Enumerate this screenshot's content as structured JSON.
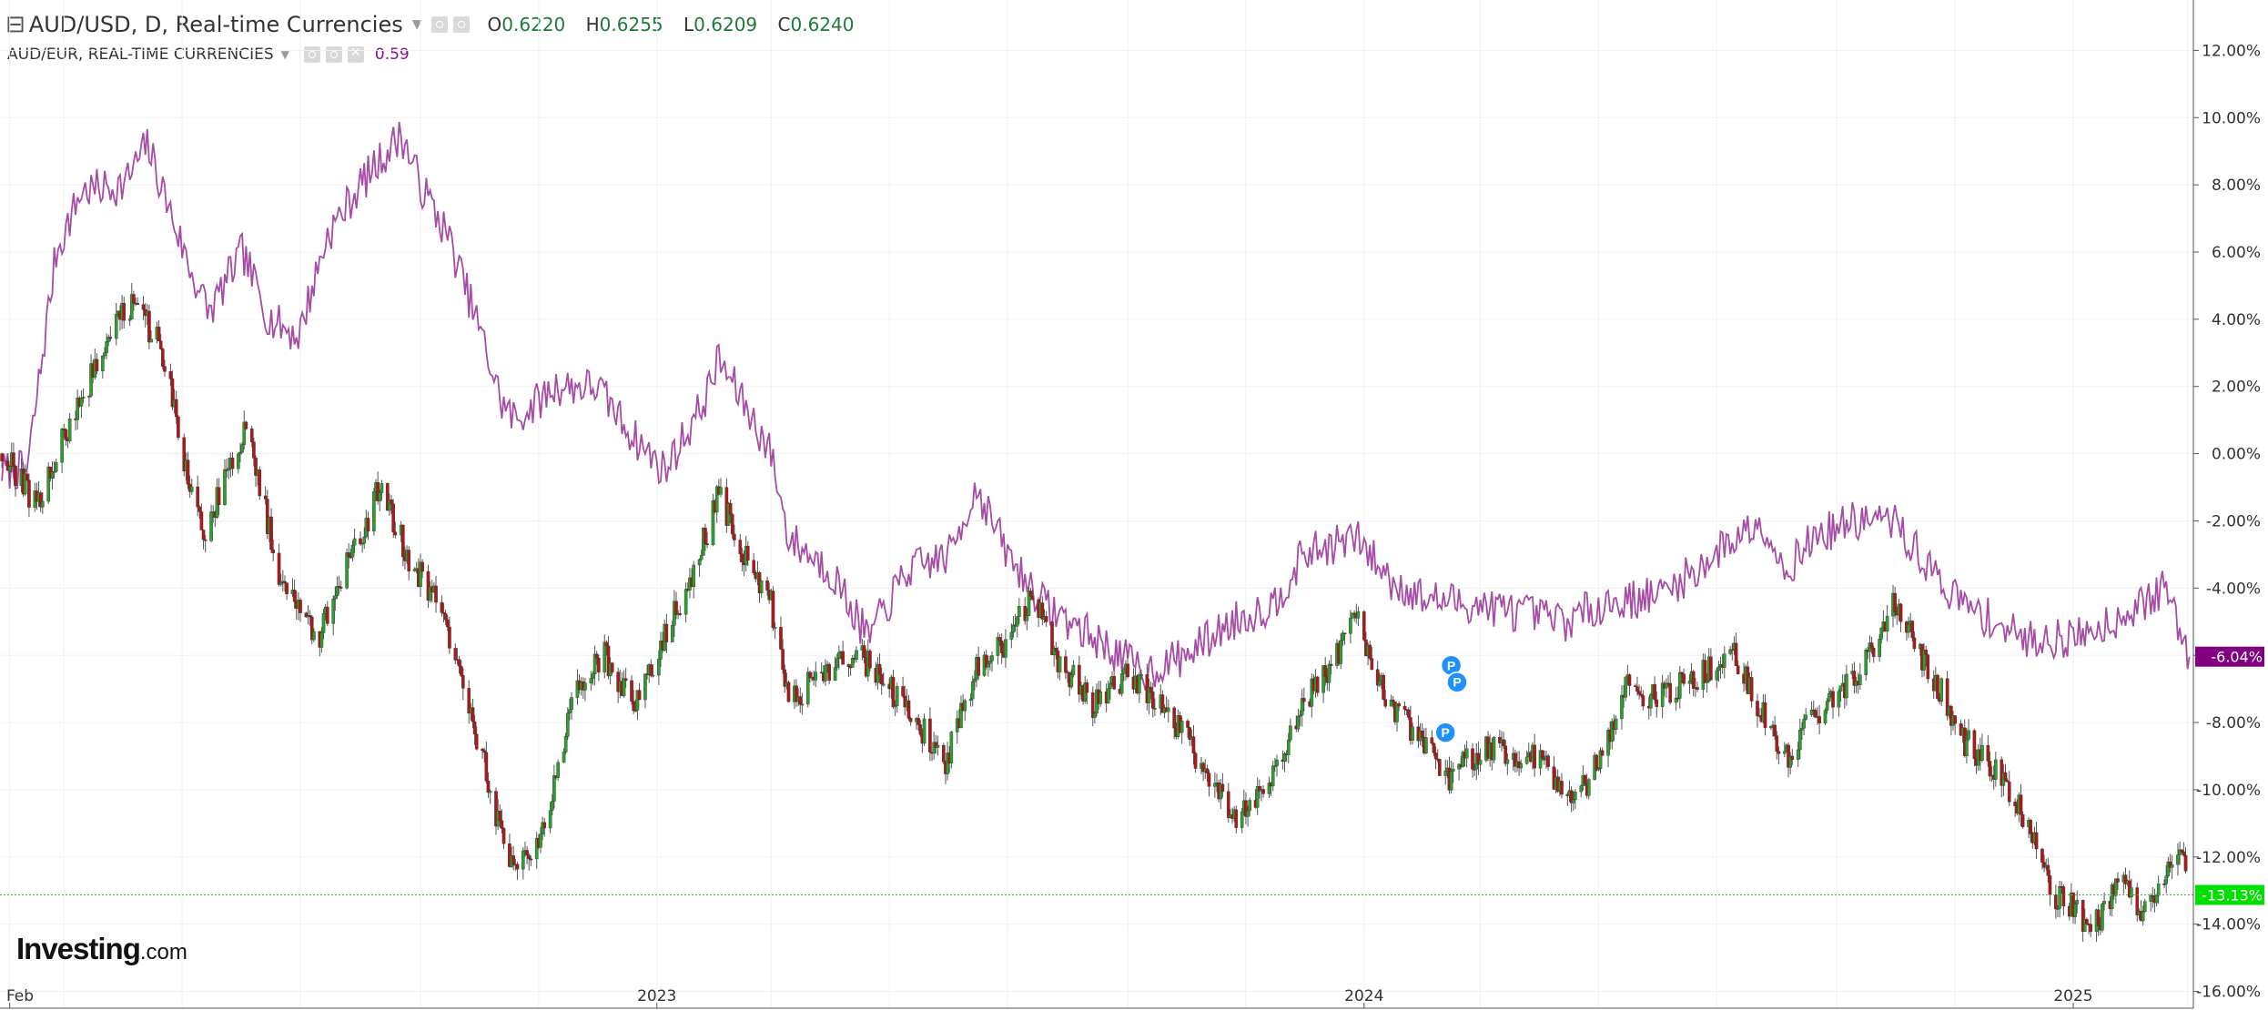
{
  "header": {
    "symbol": "AUD/USD, D, Real-time Currencies",
    "ohlc": [
      {
        "key": "O",
        "value": "0.6220"
      },
      {
        "key": "H",
        "value": "0.6255"
      },
      {
        "key": "L",
        "value": "0.6209"
      },
      {
        "key": "C",
        "value": "0.6240"
      }
    ],
    "compare_symbol": "AUD/EUR, REAL-TIME CURRENCIES",
    "compare_value": "0.59"
  },
  "logo": {
    "main": "Investing",
    "suffix": ".com"
  },
  "colors": {
    "up": "#2ca02c",
    "down": "#b01818",
    "wick": "#555555",
    "compare": "#a64ca6",
    "grid": "#f0f0f0",
    "last_price_line": "#4caf50",
    "last_price_badge": "#00e000",
    "compare_badge": "#800080",
    "marker": "#1e90ff"
  },
  "chart_data": {
    "type": "line",
    "title": "AUD/USD, D, Real-time Currencies",
    "y_axis": {
      "unit": "%",
      "ylim": [
        -16.5,
        13.5
      ],
      "tick_values": [
        12,
        10,
        8,
        6,
        4,
        2,
        0,
        -2,
        -4,
        -6,
        -8,
        -10,
        -12,
        -14,
        -16
      ],
      "tick_labels": [
        "12.00%",
        "10.00%",
        "8.00%",
        "6.00%",
        "4.00%",
        "2.00%",
        "0.00%",
        "-2.00%",
        "-4.00%",
        "-6.00%",
        "-8.00%",
        "-10.00%",
        "-12.00%",
        "-14.00%",
        "-16.00%"
      ],
      "position": "right"
    },
    "x_axis": {
      "range": [
        "2022-01-27",
        "2025-03-04"
      ],
      "labels": [
        {
          "date": "2022-02-01",
          "text": "Feb"
        },
        {
          "date": "2023-01-01",
          "text": "2023"
        },
        {
          "date": "2024-01-01",
          "text": "2024"
        },
        {
          "date": "2025-01-01",
          "text": "2025"
        }
      ],
      "gridline_dates": [
        "2022-03-01",
        "2022-05-01",
        "2022-07-01",
        "2022-09-01",
        "2022-11-01",
        "2023-03-01",
        "2023-05-01",
        "2023-07-01",
        "2023-09-01",
        "2023-11-01",
        "2024-03-01",
        "2024-05-01",
        "2024-07-01",
        "2024-09-01",
        "2024-11-01",
        "2025-03-01"
      ]
    },
    "grid": true,
    "series": [
      {
        "name": "AUD/USD, D, Real-time Currencies",
        "style": "candlestick",
        "points": [
          [
            "2022-01-28",
            0.0
          ],
          [
            "2022-02-15",
            -1.5
          ],
          [
            "2022-03-05",
            1.0
          ],
          [
            "2022-03-25",
            3.5
          ],
          [
            "2022-04-05",
            4.5
          ],
          [
            "2022-04-20",
            3.2
          ],
          [
            "2022-05-05",
            -1.0
          ],
          [
            "2022-05-12",
            -2.5
          ],
          [
            "2022-05-25",
            -0.5
          ],
          [
            "2022-06-03",
            0.8
          ],
          [
            "2022-06-20",
            -3.5
          ],
          [
            "2022-07-10",
            -5.5
          ],
          [
            "2022-07-20",
            -4.0
          ],
          [
            "2022-08-01",
            -2.5
          ],
          [
            "2022-08-11",
            -1.0
          ],
          [
            "2022-08-25",
            -3.0
          ],
          [
            "2022-09-10",
            -4.5
          ],
          [
            "2022-09-22",
            -6.5
          ],
          [
            "2022-10-05",
            -9.5
          ],
          [
            "2022-10-13",
            -11.5
          ],
          [
            "2022-10-20",
            -12.5
          ],
          [
            "2022-11-05",
            -11.0
          ],
          [
            "2022-11-20",
            -7.0
          ],
          [
            "2022-12-05",
            -6.0
          ],
          [
            "2022-12-20",
            -7.5
          ],
          [
            "2023-01-05",
            -5.5
          ],
          [
            "2023-01-20",
            -3.5
          ],
          [
            "2023-02-02",
            -1.2
          ],
          [
            "2023-02-15",
            -3.0
          ],
          [
            "2023-03-01",
            -4.5
          ],
          [
            "2023-03-10",
            -7.5
          ],
          [
            "2023-03-25",
            -6.5
          ],
          [
            "2023-04-15",
            -6.0
          ],
          [
            "2023-05-01",
            -7.0
          ],
          [
            "2023-05-15",
            -8.0
          ],
          [
            "2023-05-30",
            -9.2
          ],
          [
            "2023-06-15",
            -6.5
          ],
          [
            "2023-07-01",
            -5.5
          ],
          [
            "2023-07-14",
            -4.2
          ],
          [
            "2023-07-25",
            -6.0
          ],
          [
            "2023-08-15",
            -7.5
          ],
          [
            "2023-09-01",
            -6.5
          ],
          [
            "2023-09-15",
            -7.3
          ],
          [
            "2023-10-01",
            -8.5
          ],
          [
            "2023-10-26",
            -10.8
          ],
          [
            "2023-11-15",
            -9.5
          ],
          [
            "2023-12-01",
            -7.5
          ],
          [
            "2023-12-28",
            -5.0
          ],
          [
            "2024-01-15",
            -7.5
          ],
          [
            "2024-02-01",
            -8.5
          ],
          [
            "2024-02-13",
            -9.8
          ],
          [
            "2024-03-01",
            -8.8
          ],
          [
            "2024-03-20",
            -9.0
          ],
          [
            "2024-04-01",
            -9.0
          ],
          [
            "2024-04-19",
            -10.5
          ],
          [
            "2024-05-01",
            -9.0
          ],
          [
            "2024-05-15",
            -7.0
          ],
          [
            "2024-06-01",
            -7.2
          ],
          [
            "2024-07-10",
            -6.0
          ],
          [
            "2024-08-05",
            -9.2
          ],
          [
            "2024-08-20",
            -7.8
          ],
          [
            "2024-09-10",
            -6.8
          ],
          [
            "2024-09-30",
            -4.5
          ],
          [
            "2024-10-20",
            -6.5
          ],
          [
            "2024-11-05",
            -8.5
          ],
          [
            "2024-11-22",
            -9.5
          ],
          [
            "2024-12-05",
            -10.5
          ],
          [
            "2024-12-20",
            -13.0
          ],
          [
            "2025-01-01",
            -13.5
          ],
          [
            "2025-01-10",
            -14.3
          ],
          [
            "2025-01-25",
            -12.8
          ],
          [
            "2025-02-05",
            -13.5
          ],
          [
            "2025-02-15",
            -12.8
          ],
          [
            "2025-02-24",
            -11.5
          ],
          [
            "2025-03-02",
            -13.13
          ]
        ],
        "last_value_label": "-13.13%"
      },
      {
        "name": "AUD/EUR, REAL-TIME CURRENCIES",
        "style": "line",
        "points": [
          [
            "2022-01-28",
            -0.5
          ],
          [
            "2022-02-10",
            -0.5
          ],
          [
            "2022-02-25",
            6.0
          ],
          [
            "2022-03-10",
            7.8
          ],
          [
            "2022-04-01",
            8.0
          ],
          [
            "2022-04-13",
            9.2
          ],
          [
            "2022-05-05",
            5.5
          ],
          [
            "2022-05-15",
            4.2
          ],
          [
            "2022-06-01",
            6.0
          ],
          [
            "2022-06-15",
            4.0
          ],
          [
            "2022-06-30",
            3.5
          ],
          [
            "2022-07-15",
            6.5
          ],
          [
            "2022-08-01",
            8.0
          ],
          [
            "2022-08-22",
            9.5
          ],
          [
            "2022-09-01",
            8.0
          ],
          [
            "2022-09-15",
            6.5
          ],
          [
            "2022-10-01",
            3.8
          ],
          [
            "2022-10-13",
            1.5
          ],
          [
            "2022-10-20",
            1.0
          ],
          [
            "2022-11-10",
            2.0
          ],
          [
            "2022-12-01",
            2.0
          ],
          [
            "2022-12-20",
            0.5
          ],
          [
            "2023-01-05",
            -0.5
          ],
          [
            "2023-01-25",
            1.5
          ],
          [
            "2023-02-02",
            2.8
          ],
          [
            "2023-02-15",
            1.5
          ],
          [
            "2023-03-01",
            0.0
          ],
          [
            "2023-03-10",
            -2.5
          ],
          [
            "2023-04-01",
            -3.5
          ],
          [
            "2023-04-20",
            -5.5
          ],
          [
            "2023-05-10",
            -3.5
          ],
          [
            "2023-06-01",
            -3.0
          ],
          [
            "2023-06-15",
            -1.0
          ],
          [
            "2023-07-01",
            -3.0
          ],
          [
            "2023-07-20",
            -4.5
          ],
          [
            "2023-08-15",
            -5.5
          ],
          [
            "2023-09-10",
            -6.5
          ],
          [
            "2023-10-01",
            -6.0
          ],
          [
            "2023-10-25",
            -5.0
          ],
          [
            "2023-11-15",
            -4.5
          ],
          [
            "2023-12-01",
            -3.0
          ],
          [
            "2023-12-28",
            -2.5
          ],
          [
            "2024-01-15",
            -3.8
          ],
          [
            "2024-02-01",
            -4.3
          ],
          [
            "2024-03-01",
            -4.5
          ],
          [
            "2024-04-15",
            -5.0
          ],
          [
            "2024-05-01",
            -4.5
          ],
          [
            "2024-06-01",
            -4.2
          ],
          [
            "2024-06-20",
            -3.5
          ],
          [
            "2024-07-10",
            -2.5
          ],
          [
            "2024-07-25",
            -2.0
          ],
          [
            "2024-08-05",
            -3.5
          ],
          [
            "2024-08-20",
            -2.5
          ],
          [
            "2024-09-10",
            -2.0
          ],
          [
            "2024-09-30",
            -2.0
          ],
          [
            "2024-10-20",
            -3.5
          ],
          [
            "2024-11-05",
            -4.5
          ],
          [
            "2024-11-22",
            -5.0
          ],
          [
            "2024-12-05",
            -5.5
          ],
          [
            "2024-12-20",
            -5.5
          ],
          [
            "2025-01-01",
            -5.5
          ],
          [
            "2025-01-20",
            -5.0
          ],
          [
            "2025-02-05",
            -4.5
          ],
          [
            "2025-02-18",
            -4.0
          ],
          [
            "2025-03-02",
            -6.04
          ]
        ],
        "last_value_label": "-6.04%"
      }
    ],
    "reference_line": {
      "value": -13.13
    },
    "annotations": [
      {
        "date": "2024-02-15",
        "y": -6.3,
        "label": "P"
      },
      {
        "date": "2024-02-18",
        "y": -6.8,
        "label": "P"
      },
      {
        "date": "2024-02-12",
        "y": -8.3,
        "label": "P"
      }
    ]
  }
}
